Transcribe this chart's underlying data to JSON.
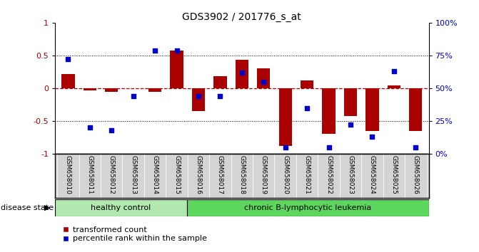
{
  "title": "GDS3902 / 201776_s_at",
  "samples": [
    "GSM658010",
    "GSM658011",
    "GSM658012",
    "GSM658013",
    "GSM658014",
    "GSM658015",
    "GSM658016",
    "GSM658017",
    "GSM658018",
    "GSM658019",
    "GSM658020",
    "GSM658021",
    "GSM658022",
    "GSM658023",
    "GSM658024",
    "GSM658025",
    "GSM658026"
  ],
  "red_bars": [
    0.22,
    -0.03,
    -0.06,
    0.0,
    -0.05,
    0.57,
    -0.35,
    0.18,
    0.43,
    0.3,
    -0.88,
    0.12,
    -0.7,
    -0.43,
    -0.65,
    0.04,
    -0.65
  ],
  "blue_pct": [
    72,
    20,
    18,
    44,
    79,
    79,
    44,
    44,
    62,
    55,
    5,
    35,
    5,
    22,
    13,
    63,
    5
  ],
  "healthy_count": 6,
  "healthy_color": "#b0e8b0",
  "leukemia_color": "#5cd65c",
  "healthy_label": "healthy control",
  "leukemia_label": "chronic B-lymphocytic leukemia",
  "disease_state_label": "disease state",
  "legend_red": "transformed count",
  "legend_blue": "percentile rank within the sample",
  "bar_color": "#aa0000",
  "dot_color": "#0000cc",
  "background_color": "#ffffff",
  "label_bg": "#d4d4d4"
}
